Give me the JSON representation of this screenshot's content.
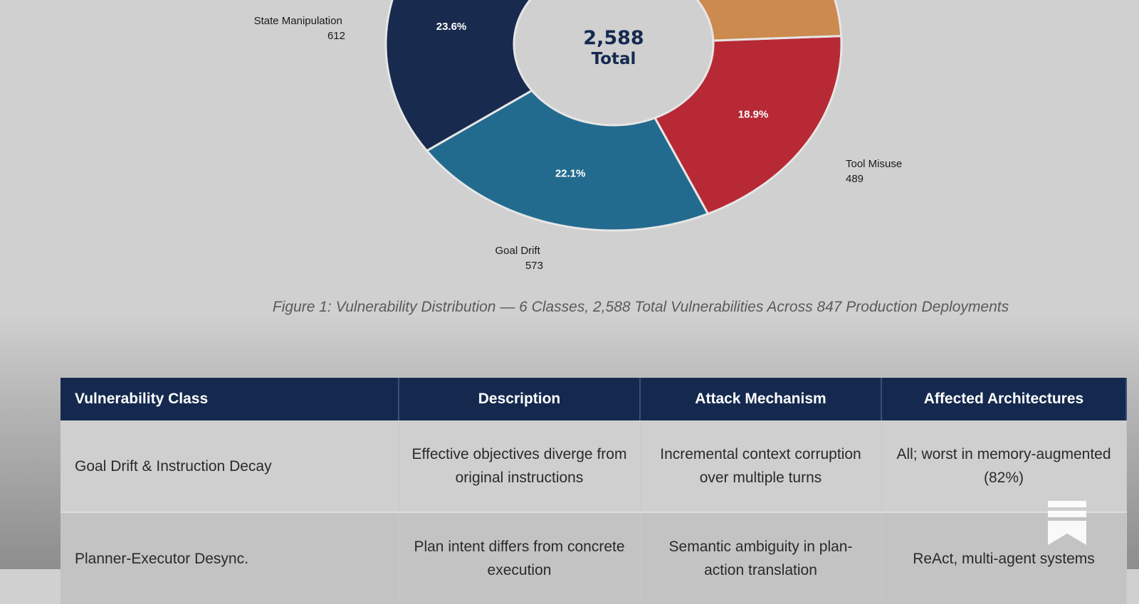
{
  "chart_data": {
    "type": "pie",
    "donut": true,
    "center_label": {
      "value": "2,588",
      "text": "Total"
    },
    "visible_slices": [
      {
        "name": "State Manipulation",
        "count": "612",
        "pct_label": "23.6%",
        "value": 23.6,
        "color": "#182a4d"
      },
      {
        "name": "Goal Drift",
        "count": "573",
        "pct_label": "22.1%",
        "value": 22.1,
        "color": "#236b8e"
      },
      {
        "name": "Tool Misuse",
        "count": "489",
        "pct_label": "18.9%",
        "value": 18.9,
        "color": "#b82936"
      }
    ],
    "partial_slices": [
      {
        "value": 13.2,
        "color": "#cc8a4f"
      }
    ],
    "caption": "Figure 1: Vulnerability Distribution — 6 Classes, 2,588 Total Vulnerabilities Across 847 Production Deployments"
  },
  "table": {
    "headers": [
      "Vulnerability Class",
      "Description",
      "Attack Mechanism",
      "Affected Architectures"
    ],
    "rows": [
      [
        "Goal Drift & Instruction Decay",
        "Effective objectives diverge from original instructions",
        "Incremental context corruption over multiple turns",
        "All; worst in memory-augmented (82%)"
      ],
      [
        "Planner-Executor Desync.",
        "Plan intent differs from concrete execution",
        "Semantic ambiguity in plan-action translation",
        "ReAct, multi-agent systems"
      ]
    ]
  },
  "bookmark_icon": "bookmark-icon"
}
